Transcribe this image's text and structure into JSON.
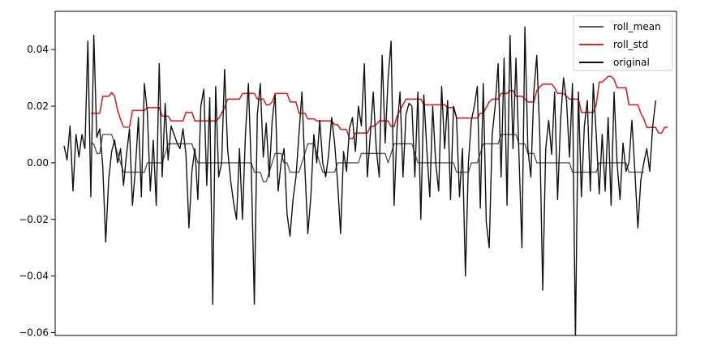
{
  "chart_data": {
    "type": "line",
    "title": "",
    "xlabel": "",
    "ylabel": "",
    "ylim": [
      -0.061,
      0.0535
    ],
    "yticks": [
      0.04,
      0.02,
      0.0,
      -0.02,
      -0.04,
      -0.06
    ],
    "ytick_labels": [
      "0.04",
      "0.02",
      "0.00",
      "−0.02",
      "−0.04",
      "−0.06"
    ],
    "xlim": [
      -3,
      206
    ],
    "grid": false,
    "legend_position": "top-right",
    "series": [
      {
        "name": "roll_mean",
        "color": "#595959",
        "values": [
          null,
          null,
          null,
          null,
          null,
          null,
          null,
          null,
          null,
          0.0067,
          0.0067,
          0.0033,
          0.0033,
          0.01,
          0.01,
          0.01,
          0.01,
          0.0067,
          0.0033,
          0.0,
          -0.0033,
          -0.0033,
          -0.0033,
          -0.0033,
          -0.0033,
          -0.0033,
          -0.0033,
          -0.0033,
          0.0,
          0.0,
          0.0,
          0.0,
          0.0,
          0.0,
          0.0033,
          0.0067,
          0.0067,
          0.0067,
          0.0067,
          0.0067,
          0.0067,
          0.0067,
          0.0067,
          0.0067,
          0.0033,
          0.0,
          0.0,
          0.0,
          0.0,
          0.0,
          0.0,
          0.0,
          0.0,
          0.0,
          0.0,
          0.0,
          0.0,
          0.0,
          0.0,
          0.0,
          0.0,
          0.0,
          0.0,
          0.0,
          -0.0033,
          -0.0033,
          -0.0033,
          -0.0067,
          -0.0067,
          -0.0033,
          0.0,
          0.0033,
          0.0033,
          0.0033,
          0.0,
          0.0,
          -0.0033,
          -0.0033,
          -0.0033,
          -0.0033,
          0.0,
          0.0033,
          0.0067,
          0.0067,
          0.0067,
          0.0033,
          0.0,
          -0.0033,
          -0.0033,
          -0.0033,
          -0.0033,
          -0.0033,
          0.0,
          0.0,
          0.0,
          0.0,
          0.0,
          0.0,
          0.0,
          0.0,
          0.0033,
          0.0033,
          0.0033,
          0.0033,
          0.0033,
          0.0033,
          0.0033,
          0.0033,
          0.0033,
          0.0,
          0.0033,
          0.0067,
          0.0067,
          0.0067,
          0.0067,
          0.0067,
          0.0067,
          0.0067,
          0.0033,
          0.0,
          0.0,
          0.0,
          0.0,
          0.0,
          0.0,
          0.0,
          0.0,
          0.0,
          0.0,
          0.0,
          0.0,
          0.0,
          -0.0033,
          -0.0033,
          -0.0033,
          -0.0033,
          -0.0033,
          0.0,
          0.0,
          0.0,
          0.0033,
          0.0067,
          0.0067,
          0.0067,
          0.0067,
          0.0067,
          0.0067,
          0.01,
          0.01,
          0.01,
          0.01,
          0.01,
          0.01,
          0.0067,
          0.0067,
          0.0067,
          0.0033,
          0.0033,
          0.0033,
          0.0,
          0.0,
          0.0,
          0.0,
          0.0,
          0.0,
          0.0,
          0.0,
          0.0,
          0.0,
          0.0,
          0.0,
          -0.0033,
          -0.0033,
          -0.0033,
          -0.0033,
          -0.0033,
          -0.0033,
          -0.0033,
          -0.0033,
          -0.0033,
          0.0,
          0.0,
          0.0,
          0.0,
          0.0,
          0.0,
          0.0,
          0.0,
          0.0,
          0.0,
          -0.0033,
          -0.0033,
          -0.0033,
          -0.0033,
          -0.0033,
          -0.0033
        ]
      },
      {
        "name": "roll_std",
        "color": "#d62728",
        "values": [
          null,
          null,
          null,
          null,
          null,
          null,
          null,
          null,
          null,
          0.0175,
          0.0175,
          0.0175,
          0.0175,
          0.0235,
          0.0235,
          0.0235,
          0.0248,
          0.0235,
          0.0185,
          0.0153,
          0.0126,
          0.0126,
          0.0126,
          0.0185,
          0.0185,
          0.0185,
          0.0185,
          0.0185,
          0.0195,
          0.0195,
          0.0195,
          0.0195,
          0.0195,
          0.0165,
          0.0165,
          0.0165,
          0.0148,
          0.0148,
          0.0148,
          0.0148,
          0.0148,
          0.0178,
          0.0178,
          0.0178,
          0.0148,
          0.0148,
          0.0148,
          0.0148,
          0.0148,
          0.0148,
          0.0148,
          0.0148,
          0.0156,
          0.0175,
          0.0195,
          0.0225,
          0.0225,
          0.0225,
          0.0225,
          0.0225,
          0.0245,
          0.0245,
          0.0245,
          0.0245,
          0.0245,
          0.0225,
          0.0225,
          0.0225,
          0.0205,
          0.0205,
          0.0215,
          0.0245,
          0.0245,
          0.0245,
          0.0245,
          0.0245,
          0.0215,
          0.0215,
          0.0215,
          0.0175,
          0.0175,
          0.0175,
          0.0155,
          0.0155,
          0.0155,
          0.0148,
          0.0148,
          0.0148,
          0.0148,
          0.0148,
          0.0148,
          0.0135,
          0.0135,
          0.0118,
          0.0118,
          0.0118,
          0.0085,
          0.0085,
          0.0105,
          0.0105,
          0.0105,
          0.0105,
          0.0105,
          0.0128,
          0.0128,
          0.0135,
          0.0148,
          0.0148,
          0.0148,
          0.0148,
          0.0128,
          0.0128,
          0.0165,
          0.0185,
          0.0205,
          0.0225,
          0.0225,
          0.0225,
          0.0225,
          0.0225,
          0.0225,
          0.0205,
          0.0205,
          0.0205,
          0.0205,
          0.0205,
          0.0205,
          0.0205,
          0.0205,
          0.0195,
          0.0195,
          0.0195,
          0.0158,
          0.0158,
          0.0158,
          0.0158,
          0.0158,
          0.0158,
          0.0158,
          0.0158,
          0.0175,
          0.0175,
          0.0195,
          0.0215,
          0.0225,
          0.0225,
          0.0225,
          0.0245,
          0.0245,
          0.0245,
          0.0255,
          0.0255,
          0.0235,
          0.0235,
          0.0235,
          0.0225,
          0.0215,
          0.0215,
          0.0215,
          0.0255,
          0.0268,
          0.0278,
          0.0278,
          0.0278,
          0.0278,
          0.0265,
          0.0245,
          0.0245,
          0.0245,
          0.0235,
          0.0225,
          0.0225,
          0.0225,
          0.0225,
          0.0178,
          0.0178,
          0.0178,
          0.0178,
          0.0178,
          0.0205,
          0.0285,
          0.0285,
          0.0295,
          0.0305,
          0.0305,
          0.0295,
          0.0265,
          0.0265,
          0.0265,
          0.0265,
          0.0205,
          0.0205,
          0.0205,
          0.0205,
          0.0175,
          0.0155,
          0.0125,
          0.0125,
          0.0125,
          0.0125,
          0.0105,
          0.0105,
          0.0125,
          0.0125
        ]
      },
      {
        "name": "original",
        "color": "#111111",
        "values": [
          0.006,
          0.001,
          0.013,
          -0.01,
          0.01,
          0.002,
          0.01,
          0.005,
          0.043,
          -0.012,
          0.045,
          0.009,
          0.012,
          -0.001,
          -0.028,
          -0.006,
          0.004,
          0.008,
          0.0,
          0.005,
          -0.008,
          0.003,
          0.012,
          -0.015,
          -0.002,
          0.016,
          -0.012,
          0.028,
          0.018,
          -0.01,
          0.008,
          -0.015,
          0.035,
          -0.005,
          0.021,
          0.001,
          0.013,
          0.01,
          0.007,
          0.005,
          0.012,
          0.003,
          -0.023,
          -0.003,
          0.005,
          -0.013,
          0.02,
          0.026,
          -0.008,
          0.023,
          -0.05,
          0.027,
          -0.005,
          0.0,
          0.033,
          0.005,
          -0.006,
          -0.014,
          -0.02,
          0.005,
          -0.02,
          0.01,
          0.028,
          -0.003,
          -0.05,
          0.017,
          0.028,
          0.002,
          0.014,
          -0.005,
          0.015,
          0.024,
          -0.01,
          0.0,
          0.005,
          -0.018,
          -0.026,
          -0.013,
          -0.005,
          0.01,
          0.025,
          -0.002,
          -0.025,
          -0.012,
          0.01,
          0.0,
          0.015,
          0.0,
          -0.005,
          0.003,
          0.016,
          0.007,
          -0.007,
          -0.025,
          0.004,
          -0.003,
          0.012,
          0.016,
          0.004,
          0.02,
          0.013,
          0.035,
          -0.005,
          0.01,
          0.025,
          0.005,
          -0.005,
          0.038,
          0.007,
          0.03,
          0.043,
          -0.015,
          0.012,
          0.025,
          -0.005,
          0.017,
          0.021,
          0.02,
          -0.005,
          0.025,
          -0.02,
          0.024,
          0.005,
          -0.012,
          0.02,
          0.0,
          -0.01,
          0.027,
          0.005,
          0.022,
          -0.013,
          0.02,
          0.016,
          -0.012,
          0.005,
          -0.04,
          0.0,
          0.015,
          0.02,
          0.027,
          -0.016,
          0.028,
          -0.021,
          -0.03,
          0.01,
          0.02,
          0.035,
          -0.005,
          0.037,
          -0.015,
          0.045,
          0.005,
          0.037,
          0.003,
          -0.03,
          0.048,
          0.005,
          -0.005,
          0.025,
          0.038,
          0.01,
          -0.045,
          0.005,
          0.015,
          0.003,
          0.025,
          -0.013,
          0.015,
          0.03,
          0.022,
          0.002,
          0.028,
          -0.063,
          0.025,
          -0.012,
          0.013,
          0.022,
          -0.01,
          0.028,
          0.01,
          -0.011,
          0.01,
          -0.01,
          0.016,
          -0.015,
          0.025,
          0.0,
          -0.013,
          0.007,
          -0.003,
          0.0,
          0.015,
          -0.003,
          -0.023,
          -0.006,
          0.0,
          0.005,
          -0.003,
          0.013,
          0.022
        ]
      }
    ]
  }
}
